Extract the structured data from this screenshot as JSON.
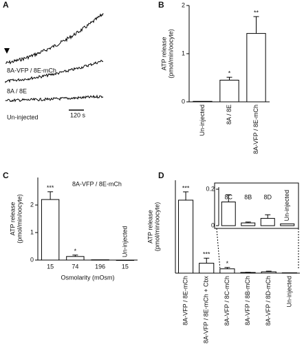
{
  "panel_labels": [
    "A",
    "B",
    "C",
    "D"
  ],
  "trace_panel": {
    "labels": [
      "8A-VFP / 8E-mCh",
      "8A / 8E",
      "Un-injected"
    ],
    "scale_bar": "120 s"
  },
  "chart_data": [
    {
      "type": "bar",
      "ylabel": [
        "ATP release",
        "(pmol/min/oocyte)"
      ],
      "categories": [
        "Un-injected",
        "8A / 8E",
        "8A-VFP / 8E-mCh"
      ],
      "values": [
        0.01,
        0.45,
        1.42
      ],
      "errors": [
        0,
        0.06,
        0.35
      ],
      "significance": [
        null,
        "*",
        "**"
      ],
      "color": "#ffffff",
      "ylim": [
        0,
        2
      ],
      "yticks": [
        0,
        1,
        2
      ],
      "category_style": "rotated"
    },
    {
      "type": "bar",
      "title": "8A-VFP / 8E-mCh",
      "ylabel": [
        "ATP release",
        "(pmol/min/oocyte)"
      ],
      "xlabel": "Osmolarity (mOsm)",
      "categories": [
        "15",
        "74",
        "196",
        "15"
      ],
      "notes": [
        null,
        null,
        null,
        "Un-injected"
      ],
      "values": [
        2.2,
        0.13,
        0.01,
        0
      ],
      "errors": [
        0.28,
        0.05,
        0,
        0
      ],
      "significance": [
        "***",
        "*",
        null,
        null
      ],
      "color": "#ffffff",
      "ylim": [
        0,
        3
      ],
      "yticks": [
        0,
        1,
        2
      ],
      "category_style": "below"
    },
    {
      "type": "bar",
      "ylabel": [
        "ATP release",
        "(pmol/min/oocyte)"
      ],
      "categories": [
        "8A-VFP / 8E-mCh",
        "8A-VFP / 8E-mCh + Cbx",
        "8A-VFP / 8C-mCh",
        "8A-VFP / 8B-mCh",
        "8A-VFP / 8D-mCh",
        "Un-injected"
      ],
      "values": [
        2.2,
        0.3,
        0.13,
        0.02,
        0.04,
        0.01
      ],
      "errors": [
        0.25,
        0.15,
        0.04,
        0.005,
        0.02,
        0
      ],
      "significance": [
        "***",
        "***",
        "*",
        null,
        null,
        null
      ],
      "color": "#ffffff",
      "ylim": [
        0,
        2.8
      ],
      "category_style": "rotated"
    },
    {
      "type": "bar",
      "categories": [
        "8C",
        "8B",
        "8D",
        "Un-injected"
      ],
      "values": [
        0.13,
        0.015,
        0.04,
        0.01
      ],
      "errors": [
        0.04,
        0.005,
        0.02,
        0
      ],
      "color": "#ffffff",
      "ylim": [
        0,
        0.2
      ],
      "yticks": [
        0,
        0.2
      ],
      "category_style": "inside"
    }
  ]
}
